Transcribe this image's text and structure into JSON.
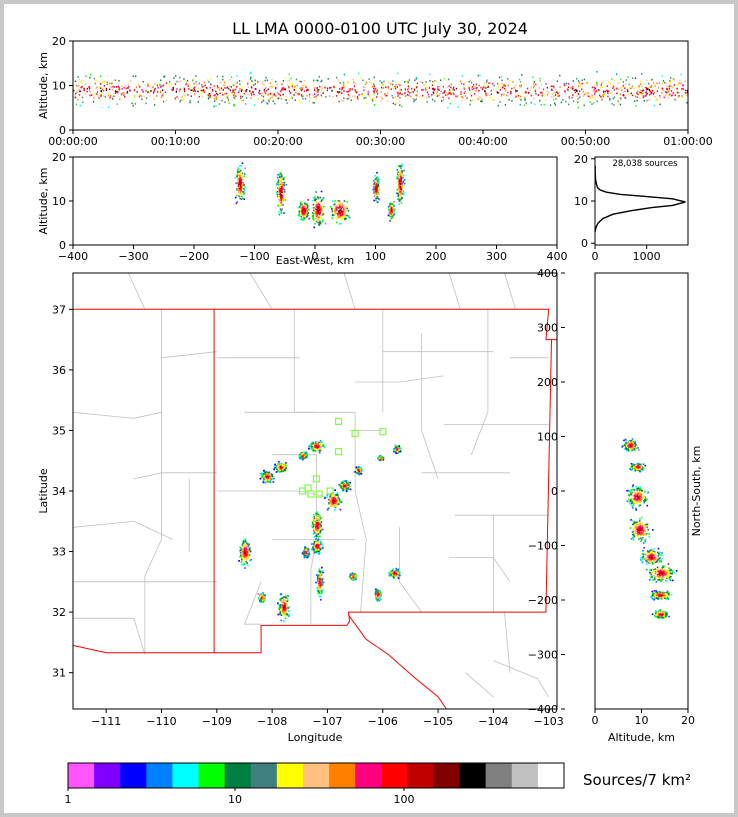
{
  "title": "LL LMA 0000-0100 UTC July 30, 2024",
  "colorbar_label": "Sources/7 km²",
  "colorbar_ticks": [
    "1",
    "10",
    "100"
  ],
  "colors": {
    "colorbar": [
      "#ff55ff",
      "#8000ff",
      "#0000ff",
      "#0080ff",
      "#00ffff",
      "#00ff00",
      "#008040",
      "#408080",
      "#ffff00",
      "#ffc080",
      "#ff8000",
      "#ff0080",
      "#ff0000",
      "#c00000",
      "#800000",
      "#000000",
      "#808080",
      "#c0c0c0",
      "#ffffff"
    ],
    "frame": "#c8c8c8",
    "state_border": "#ff0000",
    "county_border": "#c0c0c0",
    "station_marker": "#80ff40"
  },
  "chart_data": [
    {
      "panel": "time-height",
      "type": "scatter",
      "ylabel": "Altitude, km",
      "ylim": [
        0,
        20
      ],
      "yticks": [
        "0",
        "10",
        "20"
      ],
      "xlim": [
        0,
        60
      ],
      "xticks": [
        "00:00:00",
        "00:10:00",
        "00:20:00",
        "00:30:00",
        "00:40:00",
        "00:50:00",
        "01:00:00"
      ],
      "altitude_range_km": [
        3,
        20
      ],
      "peak_altitude_km": 9
    },
    {
      "panel": "east-west-altitude",
      "type": "heatmap",
      "xlabel": "East-West, km",
      "ylabel": "Altitude, km",
      "xlim": [
        -400,
        400
      ],
      "ylim": [
        0,
        20
      ],
      "xticks": [
        "−400",
        "−300",
        "−200",
        "−100",
        "0",
        "100",
        "200",
        "300",
        "400"
      ],
      "yticks": [
        "0",
        "10",
        "20"
      ],
      "clusters": [
        {
          "x": -125,
          "y": 14,
          "w": 10,
          "h": 11
        },
        {
          "x": -57,
          "y": 12,
          "w": 10,
          "h": 13
        },
        {
          "x": -20,
          "y": 8,
          "w": 12,
          "h": 6
        },
        {
          "x": 4,
          "y": 8,
          "w": 14,
          "h": 10
        },
        {
          "x": 40,
          "y": 8,
          "w": 22,
          "h": 8
        },
        {
          "x": 100,
          "y": 13,
          "w": 6,
          "h": 8
        },
        {
          "x": 125,
          "y": 8,
          "w": 6,
          "h": 5
        },
        {
          "x": 140,
          "y": 14,
          "w": 8,
          "h": 13
        }
      ]
    },
    {
      "panel": "altitude-histogram",
      "type": "line",
      "annotation": "28,038 sources",
      "xlim": [
        0,
        1800
      ],
      "ylim": [
        0,
        20
      ],
      "xticks": [
        "0",
        "1000"
      ],
      "yticks": [
        "0",
        "10",
        "20"
      ],
      "x": [
        0,
        20,
        60,
        150,
        350,
        700,
        1100,
        1500,
        1750,
        1500,
        1000,
        500,
        220,
        100,
        50,
        25,
        10,
        4,
        1
      ],
      "y": [
        3,
        4,
        5,
        6,
        7,
        7.8,
        8.5,
        9,
        9.8,
        10.5,
        11,
        11.5,
        12,
        12.5,
        13,
        14,
        15,
        16.5,
        18
      ]
    },
    {
      "panel": "plan-view-map",
      "type": "heatmap",
      "xlabel": "Longitude",
      "ylabel": "Latitude",
      "xlim": [
        -111.6,
        -102.85
      ],
      "ylim": [
        30.4,
        37.6
      ],
      "xticks": [
        "−111",
        "−110",
        "−109",
        "−108",
        "−107",
        "−106",
        "−105",
        "−104",
        "−103"
      ],
      "yticks": [
        "31",
        "32",
        "33",
        "34",
        "35",
        "36",
        "37"
      ],
      "clusters": [
        {
          "lon": -107.2,
          "lat": 34.75,
          "w": 0.35,
          "h": 0.25
        },
        {
          "lon": -107.85,
          "lat": 34.4,
          "w": 0.3,
          "h": 0.2
        },
        {
          "lon": -108.1,
          "lat": 34.25,
          "w": 0.3,
          "h": 0.25
        },
        {
          "lon": -107.45,
          "lat": 34.6,
          "w": 0.2,
          "h": 0.15
        },
        {
          "lon": -106.9,
          "lat": 33.85,
          "w": 0.35,
          "h": 0.4
        },
        {
          "lon": -106.7,
          "lat": 34.1,
          "w": 0.25,
          "h": 0.2
        },
        {
          "lon": -106.45,
          "lat": 34.35,
          "w": 0.15,
          "h": 0.15
        },
        {
          "lon": -107.2,
          "lat": 33.45,
          "w": 0.25,
          "h": 0.6
        },
        {
          "lon": -107.2,
          "lat": 33.1,
          "w": 0.25,
          "h": 0.3
        },
        {
          "lon": -108.5,
          "lat": 33.0,
          "w": 0.3,
          "h": 0.6
        },
        {
          "lon": -107.4,
          "lat": 33.0,
          "w": 0.15,
          "h": 0.2
        },
        {
          "lon": -107.15,
          "lat": 32.5,
          "w": 0.15,
          "h": 0.6
        },
        {
          "lon": -107.8,
          "lat": 32.1,
          "w": 0.25,
          "h": 0.6
        },
        {
          "lon": -108.2,
          "lat": 32.25,
          "w": 0.15,
          "h": 0.2
        },
        {
          "lon": -106.55,
          "lat": 32.6,
          "w": 0.15,
          "h": 0.15
        },
        {
          "lon": -106.1,
          "lat": 32.3,
          "w": 0.15,
          "h": 0.25
        },
        {
          "lon": -105.8,
          "lat": 32.65,
          "w": 0.25,
          "h": 0.2
        },
        {
          "lon": -105.75,
          "lat": 34.7,
          "w": 0.15,
          "h": 0.15
        },
        {
          "lon": -106.05,
          "lat": 34.55,
          "w": 0.1,
          "h": 0.1
        }
      ],
      "stations": [
        [
          -106.8,
          35.15
        ],
        [
          -106.5,
          34.95
        ],
        [
          -106.0,
          34.98
        ],
        [
          -106.8,
          34.65
        ],
        [
          -107.2,
          34.2
        ],
        [
          -107.35,
          34.05
        ],
        [
          -107.45,
          34.0
        ],
        [
          -107.3,
          33.95
        ],
        [
          -107.15,
          33.95
        ],
        [
          -106.95,
          34.0
        ],
        [
          -107.2,
          33.55
        ]
      ]
    },
    {
      "panel": "altitude-north-south",
      "type": "heatmap",
      "xlabel": "Altitude, km",
      "ylabel": "North-South, km",
      "xlim": [
        0,
        20
      ],
      "ylim": [
        -400,
        400
      ],
      "xticks": [
        "0",
        "10",
        "20"
      ],
      "yticks": [
        "−400",
        "−300",
        "−200",
        "−100",
        "0",
        "100",
        "200",
        "300",
        "400"
      ],
      "clusters": [
        {
          "alt": 7.5,
          "ns": 85,
          "w": 4,
          "h": 30
        },
        {
          "alt": 9,
          "ns": 45,
          "w": 4,
          "h": 20
        },
        {
          "alt": 9,
          "ns": -10,
          "w": 6,
          "h": 50
        },
        {
          "alt": 9.5,
          "ns": -70,
          "w": 6,
          "h": 60
        },
        {
          "alt": 12,
          "ns": -120,
          "w": 6,
          "h": 40
        },
        {
          "alt": 14,
          "ns": -150,
          "w": 8,
          "h": 40
        },
        {
          "alt": 14,
          "ns": -190,
          "w": 6,
          "h": 20
        },
        {
          "alt": 14,
          "ns": -225,
          "w": 4,
          "h": 20
        }
      ]
    }
  ]
}
